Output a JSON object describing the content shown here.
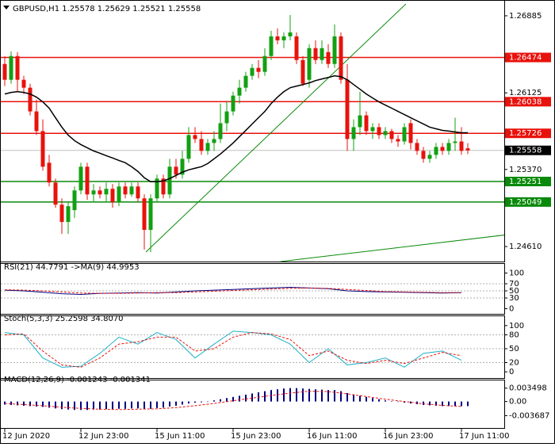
{
  "chart_data": [
    {
      "type": "candlestick",
      "title": "GBPUSD,H1 1.25578 1.25629 1.25521 1.25558",
      "categories": [
        "12 Jun 2020",
        null,
        null,
        null,
        null,
        null,
        null,
        null,
        null,
        null,
        null,
        null,
        "12 Jun 23:00",
        null,
        null,
        null,
        null,
        null,
        null,
        null,
        null,
        null,
        null,
        null,
        "15 Jun 11:00",
        null,
        null,
        null,
        null,
        null,
        null,
        null,
        null,
        null,
        null,
        null,
        "15 Jun 23:00",
        null,
        null,
        null,
        null,
        null,
        null,
        null,
        null,
        null,
        null,
        null,
        "16 Jun 11:00",
        null,
        null,
        null,
        null,
        null,
        null,
        null,
        null,
        null,
        null,
        null,
        "16 Jun 23:00",
        null,
        null,
        null,
        null,
        null,
        null,
        null,
        null,
        null,
        null,
        null,
        "17 Jun 11:00",
        null
      ],
      "open": [
        1.2641,
        1.26254,
        1.26488,
        1.26254,
        1.26176,
        1.25942,
        1.25748,
        1.25436,
        1.25241,
        1.25023,
        1.24852,
        1.24969,
        1.25163,
        1.25397,
        1.25124,
        1.25163,
        1.25124,
        1.25179,
        1.25047,
        1.25202,
        1.25124,
        1.25202,
        1.25085,
        1.24774,
        1.25085,
        1.2528,
        1.25124,
        1.25397,
        1.25319,
        1.25475,
        1.25709,
        1.2567,
        1.25553,
        1.25631,
        1.2567,
        1.25826,
        1.25942,
        1.26098,
        1.26176,
        1.26293,
        1.26371,
        1.26332,
        1.26488,
        1.26682,
        1.26643,
        1.26682,
        1.26682,
        1.26449,
        1.26254,
        1.26566,
        1.26449,
        1.26527,
        1.2641,
        1.26682,
        1.26254,
        1.2567,
        1.25787,
        1.25903,
        1.25748,
        1.25787,
        1.25709,
        1.25748,
        1.2567,
        1.25646,
        1.25826,
        1.25631,
        1.25553,
        1.25475,
        1.25514,
        1.25592,
        1.25553,
        1.25631,
        1.25646,
        1.25578
      ],
      "high": [
        1.26488,
        1.26534,
        1.26527,
        1.26293,
        1.26215,
        1.26059,
        1.25864,
        1.25514,
        1.2528,
        1.25085,
        1.25047,
        1.25202,
        1.25436,
        1.25436,
        1.25226,
        1.25202,
        1.25241,
        1.25226,
        1.25241,
        1.25241,
        1.25241,
        1.25241,
        1.25124,
        1.25124,
        1.25319,
        1.25319,
        1.25475,
        1.25475,
        1.25553,
        1.25787,
        1.25787,
        1.25748,
        1.2567,
        1.25748,
        1.2602,
        1.26036,
        1.26137,
        1.26254,
        1.26332,
        1.2641,
        1.26449,
        1.26566,
        1.26737,
        1.2676,
        1.26721,
        1.26893,
        1.26721,
        1.26488,
        1.26605,
        1.26643,
        1.26643,
        1.26605,
        1.26799,
        1.26721,
        1.2641,
        1.25864,
        1.26137,
        1.25942,
        1.25826,
        1.25826,
        1.25787,
        1.25771,
        1.25709,
        1.25826,
        1.25864,
        1.2567,
        1.25592,
        1.25553,
        1.25631,
        1.25631,
        1.2567,
        1.2588,
        1.25787,
        1.25629
      ],
      "low": [
        1.26192,
        1.26215,
        1.26137,
        1.26114,
        1.25903,
        1.25709,
        1.25358,
        1.25202,
        1.24992,
        1.24735,
        1.24735,
        1.24891,
        1.25124,
        1.2507,
        1.25047,
        1.25085,
        1.25047,
        1.24992,
        1.25008,
        1.25085,
        1.25101,
        1.25047,
        1.24579,
        1.24556,
        1.25047,
        1.25085,
        1.25085,
        1.2528,
        1.2528,
        1.25436,
        1.25631,
        1.25514,
        1.25514,
        1.25553,
        1.25631,
        1.25748,
        1.25903,
        1.2602,
        1.26137,
        1.26254,
        1.2627,
        1.26293,
        1.26449,
        1.26605,
        1.26566,
        1.26643,
        1.2641,
        1.26192,
        1.26176,
        1.2641,
        1.2641,
        1.26371,
        1.26371,
        1.26215,
        1.25553,
        1.25553,
        1.25709,
        1.25709,
        1.2567,
        1.2567,
        1.2567,
        1.25631,
        1.25592,
        1.25615,
        1.25568,
        1.25514,
        1.25436,
        1.25436,
        1.25475,
        1.25514,
        1.25514,
        1.25553,
        1.25514,
        1.25521
      ],
      "close": [
        1.26254,
        1.26488,
        1.26254,
        1.26176,
        1.25942,
        1.25748,
        1.25397,
        1.25241,
        1.25023,
        1.24852,
        1.25008,
        1.25163,
        1.25397,
        1.25124,
        1.25163,
        1.25124,
        1.25179,
        1.25047,
        1.25202,
        1.25124,
        1.25202,
        1.25085,
        1.24774,
        1.25085,
        1.2528,
        1.25124,
        1.25397,
        1.25319,
        1.25475,
        1.25709,
        1.2567,
        1.25553,
        1.25631,
        1.2567,
        1.25826,
        1.25942,
        1.26098,
        1.26176,
        1.26293,
        1.26371,
        1.26332,
        1.26488,
        1.26682,
        1.26643,
        1.26682,
        1.26721,
        1.26449,
        1.26215,
        1.26566,
        1.26449,
        1.26566,
        1.2641,
        1.26682,
        1.26254,
        1.2567,
        1.25787,
        1.25903,
        1.25748,
        1.25787,
        1.25709,
        1.25748,
        1.2567,
        1.25646,
        1.25787,
        1.25631,
        1.25553,
        1.25475,
        1.25514,
        1.25592,
        1.25553,
        1.25631,
        1.25646,
        1.25553,
        1.25558
      ],
      "up_color": "#12a012",
      "down_color": "#e8120c",
      "ma": {
        "color": "#000000",
        "values": [
          1.26114,
          1.26129,
          1.26137,
          1.26129,
          1.26114,
          1.26083,
          1.26036,
          1.25974,
          1.2588,
          1.25787,
          1.25709,
          1.25654,
          1.25615,
          1.25584,
          1.25553,
          1.2553,
          1.25506,
          1.25483,
          1.25459,
          1.25436,
          1.25397,
          1.2535,
          1.25288,
          1.25249,
          1.25249,
          1.25257,
          1.2528,
          1.25311,
          1.25343,
          1.25366,
          1.25382,
          1.25397,
          1.25428,
          1.25475,
          1.25522,
          1.25576,
          1.25631,
          1.25693,
          1.25755,
          1.25818,
          1.2588,
          1.25942,
          1.2602,
          1.26083,
          1.26137,
          1.26176,
          1.26192,
          1.26207,
          1.26223,
          1.26246,
          1.26262,
          1.26277,
          1.26293,
          1.26285,
          1.26254,
          1.26207,
          1.26161,
          1.26114,
          1.26075,
          1.26036,
          1.26005,
          1.25974,
          1.25942,
          1.25911,
          1.2588,
          1.25849,
          1.25818,
          1.25787,
          1.25771,
          1.25755,
          1.25748,
          1.2574,
          1.25732,
          1.25732
        ]
      },
      "ylim": [
        1.24462,
        1.27025
      ],
      "yticks": [
        1.26885,
        1.26125,
        {
          "value": 1.2537,
          "label": "1.25370"
        },
        {
          "value": 1.2461,
          "label": "1.24610"
        }
      ],
      "levels": [
        {
          "value": 1.26474,
          "color": "#e8120c"
        },
        {
          "value": 1.26038,
          "color": "#e8120c"
        },
        {
          "value": 1.25726,
          "color": "#e8120c"
        },
        {
          "value": 1.25251,
          "color": "#0a8a0a"
        },
        {
          "value": 1.25049,
          "color": "#0a8a0a"
        }
      ],
      "trendlines": [
        {
          "x": [
            22.25,
            63.25
          ],
          "y": [
            1.24556,
            1.27002
          ],
          "color": "#0a8a0a"
        },
        {
          "x": [
            43.5,
            79.25
          ],
          "y": [
            1.24462,
            1.24727
          ],
          "color": "#0a8a0a"
        }
      ]
    },
    {
      "type": "line",
      "title": "RSI(21) 44.7791 ->MA(9) 44.9953",
      "x": [
        0,
        3,
        6,
        9,
        12,
        15,
        18,
        21,
        24,
        27,
        30,
        33,
        36,
        39,
        42,
        45,
        48,
        51,
        54,
        57,
        60,
        63,
        66,
        69,
        72
      ],
      "series": [
        {
          "color": "#000080",
          "values": [
            52,
            50,
            46,
            42,
            40,
            43,
            44,
            45,
            44,
            47,
            50,
            52,
            54,
            56,
            58,
            60,
            58,
            56,
            50,
            48,
            47,
            46,
            45,
            44,
            45
          ]
        },
        {
          "color": "#e8120c",
          "dashed": true,
          "values": [
            53,
            52,
            50,
            47,
            44,
            43,
            43,
            44,
            45,
            45,
            47,
            49,
            51,
            53,
            55,
            57,
            58,
            57,
            54,
            51,
            48,
            47,
            46,
            45,
            45
          ]
        }
      ],
      "ylim": [
        -10,
        110
      ],
      "yticks": [
        100,
        70,
        50,
        30,
        0
      ],
      "grid": true
    },
    {
      "type": "line",
      "title": "Stoch(5,3,3) 25.2598 34.8070",
      "x": [
        0,
        3,
        6,
        9,
        12,
        15,
        18,
        21,
        24,
        27,
        30,
        33,
        36,
        39,
        42,
        45,
        48,
        51,
        54,
        57,
        60,
        63,
        66,
        69,
        72
      ],
      "series": [
        {
          "color": "#20b0c8",
          "values": [
            85,
            80,
            30,
            10,
            12,
            40,
            75,
            60,
            85,
            70,
            30,
            60,
            88,
            85,
            80,
            60,
            20,
            50,
            15,
            20,
            30,
            10,
            40,
            45,
            25
          ]
        },
        {
          "color": "#e8120c",
          "dashed": true,
          "values": [
            80,
            82,
            45,
            15,
            10,
            30,
            60,
            65,
            75,
            75,
            45,
            50,
            75,
            85,
            82,
            70,
            35,
            45,
            25,
            18,
            25,
            18,
            30,
            42,
            35
          ]
        }
      ],
      "ylim": [
        -10,
        110
      ],
      "yticks": [
        100,
        80,
        50,
        20,
        0
      ],
      "grid": true
    },
    {
      "type": "bar",
      "title": "MACD(12,26,9) -0.001243 -0.001341",
      "values": [
        -0.0008,
        -0.0009,
        -0.001,
        -0.0011,
        -0.0012,
        -0.0013,
        -0.0014,
        -0.0016,
        -0.0018,
        -0.002,
        -0.0021,
        -0.0022,
        -0.0022,
        -0.0022,
        -0.0021,
        -0.0021,
        -0.002,
        -0.002,
        -0.0019,
        -0.0019,
        -0.0018,
        -0.0018,
        -0.002,
        -0.0019,
        -0.0017,
        -0.0016,
        -0.0013,
        -0.0011,
        -0.0008,
        -0.0005,
        -0.0003,
        -0.0002,
        0.0,
        0.0003,
        0.0006,
        0.0009,
        0.0012,
        0.0015,
        0.0018,
        0.0021,
        0.0024,
        0.0027,
        0.003,
        0.0032,
        0.0034,
        0.0035,
        0.0035,
        0.0034,
        0.0033,
        0.0032,
        0.0031,
        0.003,
        0.003,
        0.0027,
        0.0022,
        0.0018,
        0.0015,
        0.0012,
        0.0009,
        0.0006,
        0.0003,
        0.0001,
        -0.0001,
        -0.0003,
        -0.0005,
        -0.0007,
        -0.0009,
        -0.001,
        -0.0011,
        -0.0012,
        -0.0012,
        -0.0012,
        -0.0012,
        -0.0012
      ],
      "color": "#000080",
      "signal": {
        "color": "#e8120c",
        "dashed": true,
        "x": [
          0,
          3,
          6,
          9,
          12,
          15,
          18,
          21,
          24,
          27,
          30,
          33,
          36,
          39,
          42,
          45,
          48,
          51,
          54,
          57,
          60,
          63,
          66,
          69,
          72
        ],
        "values": [
          -0.0005,
          -0.0008,
          -0.0011,
          -0.0015,
          -0.0018,
          -0.002,
          -0.0021,
          -0.002,
          -0.0019,
          -0.0016,
          -0.0011,
          -0.0005,
          0.0002,
          0.0009,
          0.0016,
          0.0022,
          0.0027,
          0.0026,
          0.002,
          0.0013,
          0.0006,
          0.0,
          -0.0006,
          -0.001,
          -0.0013
        ]
      },
      "ylim": [
        -0.0065,
        0.0051
      ],
      "yticks": [
        0.003498,
        {
          "value": 0,
          "label": "0.00"
        },
        -0.003687
      ]
    }
  ]
}
